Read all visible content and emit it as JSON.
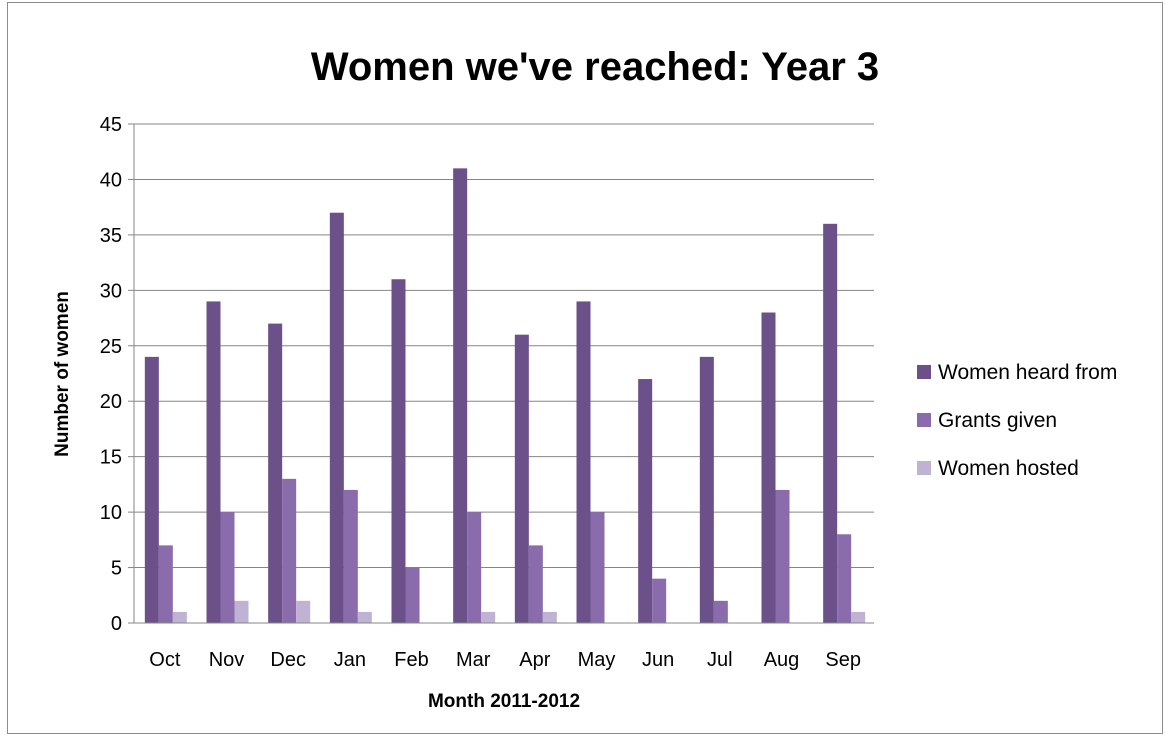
{
  "chart_data": {
    "type": "bar",
    "title": "Women we've reached: Year 3",
    "xlabel": "Month 2011-2012",
    "ylabel": "Number of women",
    "categories": [
      "Oct",
      "Nov",
      "Dec",
      "Jan",
      "Feb",
      "Mar",
      "Apr",
      "May",
      "Jun",
      "Jul",
      "Aug",
      "Sep"
    ],
    "series": [
      {
        "name": "Women heard from",
        "color": "#6b5089",
        "values": [
          24,
          29,
          27,
          37,
          31,
          41,
          26,
          29,
          22,
          24,
          28,
          36
        ]
      },
      {
        "name": "Grants given",
        "color": "#8a6bab",
        "values": [
          7,
          10,
          13,
          12,
          5,
          10,
          7,
          10,
          4,
          2,
          12,
          8
        ]
      },
      {
        "name": "Women hosted",
        "color": "#bfb2d3",
        "values": [
          1,
          2,
          2,
          1,
          0,
          1,
          1,
          0,
          0,
          0,
          0,
          1
        ]
      }
    ],
    "ylim": [
      0,
      45
    ],
    "yticks": [
      0,
      5,
      10,
      15,
      20,
      25,
      30,
      35,
      40,
      45
    ],
    "grid": true,
    "legend": "right"
  }
}
